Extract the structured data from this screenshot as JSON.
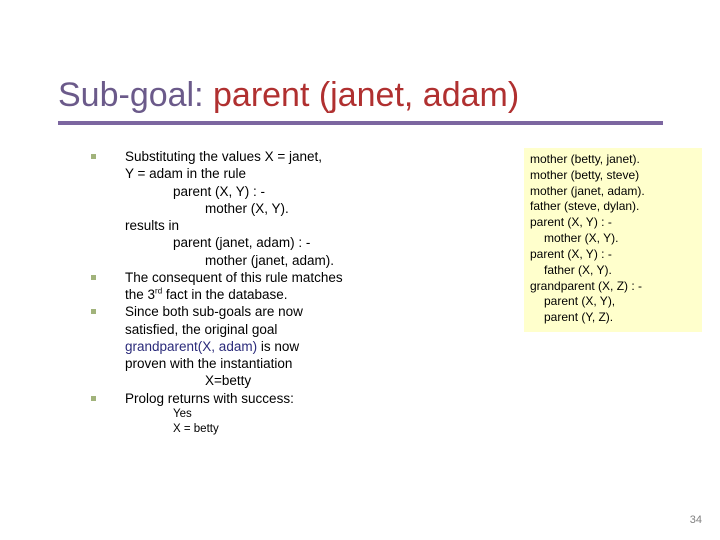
{
  "title": {
    "pre": "Sub-goal: ",
    "hl": "parent (janet, adam)",
    "pre_color": "#6b5a8a",
    "hl_color": "#b03030",
    "underline_color": "#7c66a0",
    "fontsize": 34
  },
  "bullets": [
    {
      "lines": [
        {
          "text": "Substituting the values X = janet,"
        },
        {
          "text": "Y = adam in the rule"
        },
        {
          "text": "parent (X, Y) : -",
          "indent": 1
        },
        {
          "text": "mother (X, Y).",
          "indent": 2
        },
        {
          "text": "results in"
        },
        {
          "text": "parent (janet, adam) : -",
          "indent": 1
        },
        {
          "text": "mother (janet, adam).",
          "indent": 2
        }
      ]
    },
    {
      "lines": [
        {
          "text": "The consequent of this rule matches"
        },
        {
          "html": "the 3<sup style='font-size:8px'>rd</sup> fact in the database."
        }
      ]
    },
    {
      "lines": [
        {
          "text": "Since both sub-goals are now"
        },
        {
          "text": "satisfied, the original goal"
        },
        {
          "text": "grandparent(X, adam)",
          "gp": true,
          "append": " is now"
        },
        {
          "text": "proven with the instantiation"
        },
        {
          "text": "X=betty",
          "indent": 2
        }
      ]
    },
    {
      "lines": [
        {
          "text": "Prolog returns with success:"
        },
        {
          "text": "Yes",
          "ind_res": true,
          "small": true
        },
        {
          "text": "X = betty",
          "ind_res": true,
          "small": true
        }
      ]
    }
  ],
  "box": {
    "bg": "#ffffcc",
    "fontsize": 12,
    "lines": [
      {
        "text": "mother (betty, janet)."
      },
      {
        "text": "mother (betty, steve)"
      },
      {
        "text": "mother (janet, adam)."
      },
      {
        "text": "father (steve, dylan)."
      },
      {
        "text": "parent (X, Y) : -"
      },
      {
        "text": "mother (X, Y).",
        "indent": 1
      },
      {
        "text": "parent (X, Y) : -"
      },
      {
        "text": "father (X, Y).",
        "indent": 1
      },
      {
        "text": "grandparent (X, Z) : -"
      },
      {
        "text": "parent (X, Y),",
        "indent": 1
      },
      {
        "text": "parent (Y, Z).",
        "indent": 1
      }
    ]
  },
  "pagenum": "34",
  "bullet_color": "#a1b37b"
}
